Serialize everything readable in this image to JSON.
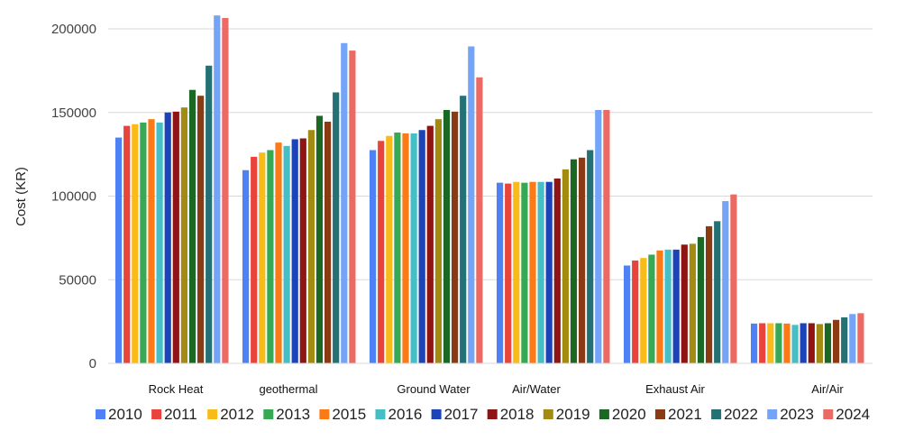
{
  "chart_data": {
    "type": "bar",
    "ylabel": "Cost (KR)",
    "ylim": [
      0,
      200000
    ],
    "y_ticks": [
      "0",
      "50000",
      "100000",
      "150000",
      "200000"
    ],
    "grid": true,
    "legend_position": "bottom",
    "categories": [
      "Rock Heat",
      "geothermal",
      "Ground Water",
      "Air/Water",
      "Exhaust Air",
      "Air/Air"
    ],
    "series": [
      {
        "name": "2010",
        "color": "#4e81f4",
        "values": [
          135000,
          115500,
          127500,
          108000,
          58500,
          23800
        ]
      },
      {
        "name": "2011",
        "color": "#e9443b",
        "values": [
          142000,
          123500,
          133000,
          107500,
          61500,
          24000
        ]
      },
      {
        "name": "2012",
        "color": "#f8bb18",
        "values": [
          143000,
          126000,
          136000,
          108500,
          63000,
          24000
        ]
      },
      {
        "name": "2013",
        "color": "#37a954",
        "values": [
          144000,
          127500,
          138000,
          108000,
          65000,
          24000
        ]
      },
      {
        "name": "2015",
        "color": "#fb7a15",
        "values": [
          146000,
          132000,
          137500,
          108500,
          67500,
          23800
        ]
      },
      {
        "name": "2016",
        "color": "#45bec6",
        "values": [
          144000,
          130000,
          137500,
          108500,
          68000,
          23000
        ]
      },
      {
        "name": "2017",
        "color": "#1c44b8",
        "values": [
          150000,
          134000,
          139500,
          108500,
          68000,
          24000
        ]
      },
      {
        "name": "2018",
        "color": "#8f1515",
        "values": [
          150500,
          134500,
          142000,
          110500,
          71000,
          24000
        ]
      },
      {
        "name": "2019",
        "color": "#a38b12",
        "values": [
          153000,
          139500,
          146000,
          116000,
          71500,
          23500
        ]
      },
      {
        "name": "2020",
        "color": "#1a6824",
        "values": [
          163500,
          148000,
          151500,
          122000,
          75500,
          24000
        ]
      },
      {
        "name": "2021",
        "color": "#8a3b13",
        "values": [
          160000,
          144500,
          150500,
          123000,
          82000,
          26000
        ]
      },
      {
        "name": "2022",
        "color": "#237174",
        "values": [
          178000,
          162000,
          160000,
          127500,
          85000,
          27500
        ]
      },
      {
        "name": "2023",
        "color": "#74a4f8",
        "values": [
          208000,
          191500,
          189500,
          151500,
          97000,
          29500
        ]
      },
      {
        "name": "2024",
        "color": "#ec6a64",
        "values": [
          206500,
          187000,
          171000,
          151500,
          101000,
          30000
        ]
      }
    ]
  }
}
